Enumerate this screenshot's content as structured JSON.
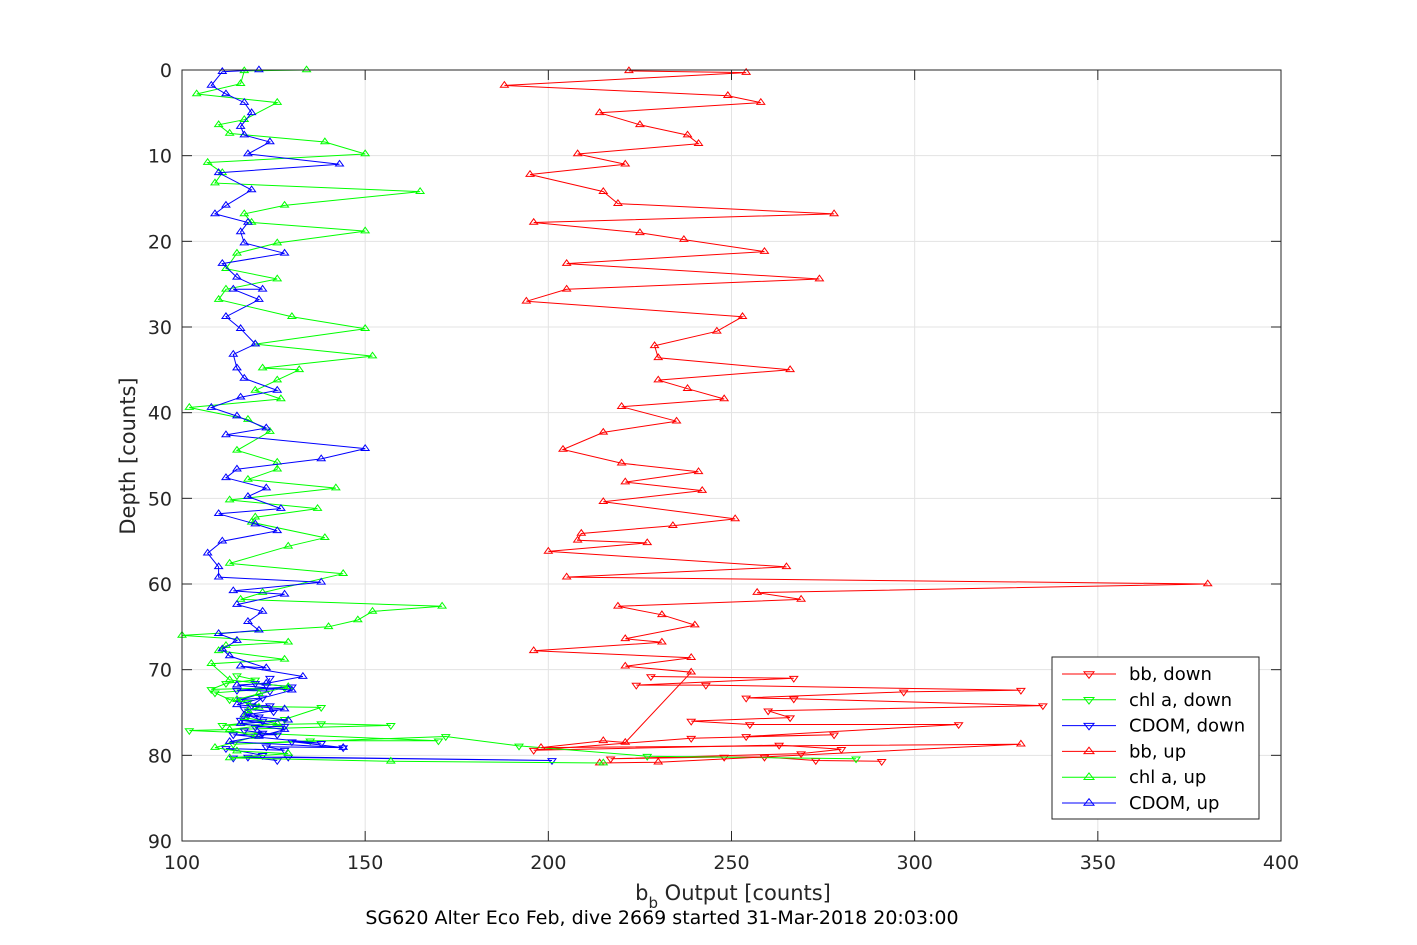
{
  "chart_data": {
    "type": "line",
    "xlabel": "b_b Output [counts]",
    "xlabel_main": "b",
    "xlabel_sub": "b",
    "xlabel_rest": " Output [counts]",
    "ylabel": "Depth [counts]",
    "caption": "SG620 Alter Eco Feb, dive 2669 started 31-Mar-2018 20:03:00",
    "xlim": [
      100,
      400
    ],
    "ylim": [
      0,
      90
    ],
    "y_reversed": true,
    "grid": true,
    "legend_position": "lower-right",
    "x_ticks": [
      100,
      150,
      200,
      250,
      300,
      350,
      400
    ],
    "y_ticks": [
      0,
      10,
      20,
      30,
      40,
      50,
      60,
      70,
      80,
      90
    ],
    "x_tick_labels": [
      "100",
      "150",
      "200",
      "250",
      "300",
      "350",
      "400"
    ],
    "y_tick_labels": [
      "0",
      "10",
      "20",
      "30",
      "40",
      "50",
      "60",
      "70",
      "80",
      "90"
    ],
    "series": [
      {
        "name": "bb, down",
        "color": "#ff0000",
        "marker": "triangle-down",
        "points": [
          [
            291,
            80.7
          ],
          [
            273,
            80.6
          ],
          [
            259,
            80.2
          ],
          [
            248,
            80.2
          ],
          [
            217,
            80.4
          ],
          [
            269,
            79.8
          ],
          [
            280,
            79.3
          ],
          [
            263,
            78.8
          ],
          [
            196,
            79.4
          ],
          [
            239,
            78
          ],
          [
            278,
            77.6
          ],
          [
            254,
            77.8
          ],
          [
            312,
            76.4
          ],
          [
            255,
            76.4
          ],
          [
            239,
            76
          ],
          [
            266,
            75.6
          ],
          [
            260,
            74.8
          ],
          [
            335,
            74.2
          ],
          [
            267,
            73.4
          ],
          [
            254,
            73.3
          ],
          [
            297,
            72.6
          ],
          [
            329,
            72.4
          ],
          [
            243,
            71.8
          ],
          [
            224,
            71.8
          ],
          [
            267,
            71
          ],
          [
            228,
            70.8
          ]
        ]
      },
      {
        "name": "chl a, down",
        "color": "#00ff00",
        "marker": "triangle-down",
        "points": [
          [
            284,
            80.4
          ],
          [
            227,
            80.1
          ],
          [
            192,
            78.9
          ],
          [
            172,
            77.8
          ],
          [
            114,
            78.7
          ],
          [
            135,
            78.3
          ],
          [
            170,
            78.3
          ],
          [
            102,
            77.1
          ],
          [
            157,
            76.5
          ],
          [
            138,
            76.3
          ],
          [
            111,
            76.5
          ],
          [
            128,
            75.8
          ],
          [
            138,
            74.4
          ],
          [
            120,
            74.3
          ],
          [
            118,
            73.8
          ],
          [
            113,
            73.5
          ],
          [
            109,
            72.7
          ],
          [
            128,
            72.1
          ],
          [
            108,
            72.3
          ],
          [
            112,
            71.6
          ],
          [
            120,
            71.2
          ],
          [
            115,
            70.7
          ]
        ]
      },
      {
        "name": "CDOM, down",
        "color": "#0000ff",
        "marker": "triangle-down",
        "points": [
          [
            126,
            80.6
          ],
          [
            118,
            80.2
          ],
          [
            201,
            80.6
          ],
          [
            129,
            80.2
          ],
          [
            114,
            80.3
          ],
          [
            122,
            80
          ],
          [
            112,
            79.2
          ],
          [
            128,
            79.4
          ],
          [
            123,
            79
          ],
          [
            144,
            79.1
          ],
          [
            130,
            78.4
          ],
          [
            138,
            78.6
          ],
          [
            114,
            77.6
          ],
          [
            126,
            77.6
          ],
          [
            117,
            77.1
          ],
          [
            122,
            77.4
          ],
          [
            120,
            76.7
          ],
          [
            128,
            76.6
          ],
          [
            116,
            75.9
          ],
          [
            122,
            76
          ],
          [
            118,
            75.3
          ],
          [
            121,
            75.5
          ],
          [
            117,
            74.6
          ],
          [
            125,
            74.9
          ],
          [
            124,
            74.2
          ],
          [
            119,
            74.2
          ],
          [
            122,
            73.3
          ],
          [
            116,
            73.5
          ],
          [
            124,
            72.5
          ],
          [
            115,
            72.4
          ],
          [
            130,
            72
          ],
          [
            120,
            71.6
          ],
          [
            123,
            71.8
          ],
          [
            124,
            71
          ]
        ]
      },
      {
        "name": "bb, up",
        "color": "#ff0000",
        "marker": "triangle-up",
        "points": [
          [
            214,
            80.9
          ],
          [
            230,
            80.8
          ],
          [
            329,
            78.7
          ],
          [
            198,
            79.1
          ],
          [
            215,
            78.3
          ],
          [
            221,
            78.5
          ],
          [
            239,
            70.3
          ],
          [
            221,
            69.6
          ],
          [
            239,
            68.6
          ],
          [
            196,
            67.8
          ],
          [
            231,
            66.8
          ],
          [
            221,
            66.4
          ],
          [
            240,
            64.8
          ],
          [
            231,
            63.6
          ],
          [
            219,
            62.6
          ],
          [
            269,
            61.8
          ],
          [
            257,
            61
          ],
          [
            380,
            60
          ],
          [
            205,
            59.2
          ],
          [
            265,
            58
          ],
          [
            200,
            56.2
          ],
          [
            227,
            55.2
          ],
          [
            208,
            54.9
          ],
          [
            209,
            54.1
          ],
          [
            234,
            53.2
          ],
          [
            251,
            52.4
          ],
          [
            215,
            50.4
          ],
          [
            242,
            49.1
          ],
          [
            221,
            48.1
          ],
          [
            241,
            46.9
          ],
          [
            220,
            45.9
          ],
          [
            204,
            44.3
          ],
          [
            215,
            42.3
          ],
          [
            235,
            41
          ],
          [
            220,
            39.3
          ],
          [
            248,
            38.4
          ],
          [
            238,
            37.2
          ],
          [
            230,
            36.2
          ],
          [
            266,
            35
          ],
          [
            230,
            33.6
          ],
          [
            229,
            32.2
          ],
          [
            246,
            30.5
          ],
          [
            253,
            28.8
          ],
          [
            194,
            27
          ],
          [
            205,
            25.6
          ],
          [
            274,
            24.4
          ],
          [
            205,
            22.6
          ],
          [
            259,
            21.2
          ],
          [
            237,
            19.8
          ],
          [
            225,
            19
          ],
          [
            196,
            17.8
          ],
          [
            278,
            16.8
          ],
          [
            219,
            15.6
          ],
          [
            215,
            14.2
          ],
          [
            195,
            12.2
          ],
          [
            221,
            11
          ],
          [
            208,
            9.8
          ],
          [
            241,
            8.6
          ],
          [
            238,
            7.6
          ],
          [
            225,
            6.4
          ],
          [
            214,
            5
          ],
          [
            258,
            3.8
          ],
          [
            249,
            3
          ],
          [
            188,
            1.8
          ],
          [
            254,
            0.3
          ],
          [
            222,
            0.1
          ]
        ]
      },
      {
        "name": "chl a, up",
        "color": "#00ff00",
        "marker": "triangle-up",
        "points": [
          [
            215,
            80.9
          ],
          [
            157,
            80.7
          ],
          [
            113,
            80.3
          ],
          [
            129,
            79.8
          ],
          [
            115,
            79.5
          ],
          [
            109,
            79.1
          ],
          [
            120,
            77.8
          ],
          [
            113,
            77
          ],
          [
            126,
            76.3
          ],
          [
            117,
            75.6
          ],
          [
            118,
            74.8
          ],
          [
            121,
            74.4
          ],
          [
            115,
            73.5
          ],
          [
            121,
            72.8
          ],
          [
            129,
            72
          ],
          [
            113,
            71.2
          ],
          [
            108,
            69.3
          ],
          [
            128,
            68.8
          ],
          [
            110,
            67.8
          ],
          [
            112,
            67.2
          ],
          [
            129,
            66.8
          ],
          [
            100,
            66
          ],
          [
            140,
            65
          ],
          [
            148,
            64.2
          ],
          [
            152,
            63.2
          ],
          [
            171,
            62.6
          ],
          [
            116,
            61.8
          ],
          [
            122,
            61
          ],
          [
            144,
            58.8
          ],
          [
            113,
            57.6
          ],
          [
            129,
            55.6
          ],
          [
            139,
            54.6
          ],
          [
            119,
            52.8
          ],
          [
            120,
            52.2
          ],
          [
            137,
            51.2
          ],
          [
            113,
            50.2
          ],
          [
            142,
            48.8
          ],
          [
            118,
            47.8
          ],
          [
            126,
            46.6
          ],
          [
            126,
            45.8
          ],
          [
            115,
            44.4
          ],
          [
            124,
            42.2
          ],
          [
            118,
            40.8
          ],
          [
            102,
            39.4
          ],
          [
            127,
            38.4
          ],
          [
            120,
            37.4
          ],
          [
            126,
            36.2
          ],
          [
            132,
            35
          ],
          [
            122,
            34.8
          ],
          [
            152,
            33.4
          ],
          [
            120,
            32
          ],
          [
            150,
            30.2
          ],
          [
            130,
            28.8
          ],
          [
            110,
            26.8
          ],
          [
            112,
            25.6
          ],
          [
            126,
            24.4
          ],
          [
            112,
            23.2
          ],
          [
            115,
            21.4
          ],
          [
            126,
            20.2
          ],
          [
            150,
            18.8
          ],
          [
            119,
            17.8
          ],
          [
            117,
            16.8
          ],
          [
            128,
            15.8
          ],
          [
            165,
            14.2
          ],
          [
            109,
            13.2
          ],
          [
            111,
            12
          ],
          [
            107,
            10.8
          ],
          [
            150,
            9.8
          ],
          [
            139,
            8.4
          ],
          [
            113,
            7.4
          ],
          [
            110,
            6.4
          ],
          [
            117,
            5.8
          ],
          [
            126,
            3.8
          ],
          [
            104,
            2.8
          ],
          [
            116,
            1.6
          ],
          [
            117,
            0.1
          ],
          [
            134,
            0
          ]
        ]
      },
      {
        "name": "CDOM, up",
        "color": "#0000ff",
        "marker": "triangle-up",
        "points": [
          [
            144,
            79.1
          ],
          [
            113,
            78.4
          ],
          [
            121,
            77.8
          ],
          [
            128,
            77
          ],
          [
            116,
            76.3
          ],
          [
            129,
            75.9
          ],
          [
            117,
            75.3
          ],
          [
            128,
            74.6
          ],
          [
            115,
            74.1
          ],
          [
            130,
            72.4
          ],
          [
            115,
            71.8
          ],
          [
            123,
            71.6
          ],
          [
            133,
            70.8
          ],
          [
            116,
            69.6
          ],
          [
            123,
            69.8
          ],
          [
            113,
            68.4
          ],
          [
            111,
            67.6
          ],
          [
            115,
            66.6
          ],
          [
            110,
            65.8
          ],
          [
            121,
            65.4
          ],
          [
            118,
            64.4
          ],
          [
            122,
            63.2
          ],
          [
            115,
            62.4
          ],
          [
            128,
            61.2
          ],
          [
            114,
            60.8
          ],
          [
            138,
            59.8
          ],
          [
            110,
            59.2
          ],
          [
            110,
            58
          ],
          [
            107,
            56.4
          ],
          [
            111,
            55
          ],
          [
            126,
            53.8
          ],
          [
            120,
            53
          ],
          [
            110,
            51.8
          ],
          [
            127,
            51.2
          ],
          [
            118,
            49.8
          ],
          [
            123,
            48.8
          ],
          [
            112,
            47.6
          ],
          [
            115,
            46.6
          ],
          [
            138,
            45.4
          ],
          [
            150,
            44.2
          ],
          [
            112,
            42.6
          ],
          [
            123,
            41.8
          ],
          [
            115,
            40.4
          ],
          [
            108,
            39.4
          ],
          [
            116,
            38.2
          ],
          [
            126,
            37.4
          ],
          [
            117,
            36
          ],
          [
            115,
            34.8
          ],
          [
            114,
            33.2
          ],
          [
            120,
            32
          ],
          [
            116,
            30.2
          ],
          [
            112,
            28.8
          ],
          [
            121,
            26.8
          ],
          [
            114,
            25.6
          ],
          [
            122,
            25.6
          ],
          [
            115,
            24.2
          ],
          [
            111,
            22.6
          ],
          [
            128,
            21.4
          ],
          [
            117,
            20.2
          ],
          [
            116,
            18.9
          ],
          [
            118,
            17.8
          ],
          [
            109,
            16.8
          ],
          [
            112,
            15.8
          ],
          [
            119,
            14
          ],
          [
            110,
            12
          ],
          [
            143,
            11
          ],
          [
            118,
            9.8
          ],
          [
            124,
            8.4
          ],
          [
            117,
            7.6
          ],
          [
            116,
            6.6
          ],
          [
            119,
            5
          ],
          [
            117,
            3.8
          ],
          [
            112,
            2.8
          ],
          [
            108,
            1.8
          ],
          [
            111,
            0.2
          ],
          [
            121,
            0
          ]
        ]
      }
    ]
  }
}
